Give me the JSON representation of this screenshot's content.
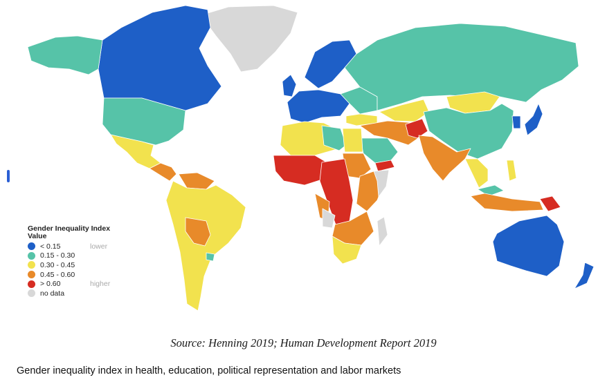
{
  "palette": {
    "lt015": "#1e5fc7",
    "r015_030": "#56c3a8",
    "r030_045": "#f2e24e",
    "r045_060": "#e88a2a",
    "gt060": "#d62c22",
    "nodata": "#d8d8d8"
  },
  "legend": {
    "title_line1": "Gender Inequality Index",
    "title_line2": "Value",
    "items": [
      {
        "label": "< 0.15",
        "note": "lower",
        "color_key": "lt015"
      },
      {
        "label": "0.15 - 0.30",
        "note": "",
        "color_key": "r015_030"
      },
      {
        "label": "0.30 - 0.45",
        "note": "",
        "color_key": "r030_045"
      },
      {
        "label": "0.45 - 0.60",
        "note": "",
        "color_key": "r045_060"
      },
      {
        "label": "> 0.60",
        "note": "higher",
        "color_key": "gt060"
      },
      {
        "label": "no data",
        "note": "",
        "color_key": "nodata"
      }
    ]
  },
  "regions": [
    {
      "name": "greenland",
      "class": "nodata"
    },
    {
      "name": "canada",
      "class": "lt015"
    },
    {
      "name": "alaska",
      "class": "r015_030"
    },
    {
      "name": "usa",
      "class": "r015_030"
    },
    {
      "name": "mexico",
      "class": "r030_045"
    },
    {
      "name": "central-america",
      "class": "r045_060"
    },
    {
      "name": "south-america",
      "class": "r030_045"
    },
    {
      "name": "bolivia-paraguay",
      "class": "r045_060"
    },
    {
      "name": "uruguay",
      "class": "r015_030"
    },
    {
      "name": "venezuela-guianas",
      "class": "r045_060"
    },
    {
      "name": "scandinavia",
      "class": "lt015"
    },
    {
      "name": "western-europe",
      "class": "lt015"
    },
    {
      "name": "uk-ireland",
      "class": "lt015"
    },
    {
      "name": "eastern-europe",
      "class": "r015_030"
    },
    {
      "name": "russia",
      "class": "r015_030"
    },
    {
      "name": "mongolia",
      "class": "r030_045"
    },
    {
      "name": "china",
      "class": "r015_030"
    },
    {
      "name": "japan",
      "class": "lt015"
    },
    {
      "name": "korea",
      "class": "lt015"
    },
    {
      "name": "kazakhstan",
      "class": "r030_045"
    },
    {
      "name": "turkey",
      "class": "r030_045"
    },
    {
      "name": "middle-east",
      "class": "r045_060"
    },
    {
      "name": "saudi-arabia",
      "class": "r015_030"
    },
    {
      "name": "yemen",
      "class": "gt060"
    },
    {
      "name": "afghanistan",
      "class": "gt060"
    },
    {
      "name": "india-pakistan",
      "class": "r045_060"
    },
    {
      "name": "southeast-asia",
      "class": "r030_045"
    },
    {
      "name": "malaysia",
      "class": "r015_030"
    },
    {
      "name": "indonesia",
      "class": "r045_060"
    },
    {
      "name": "papua-new-guinea",
      "class": "gt060"
    },
    {
      "name": "philippines",
      "class": "r030_045"
    },
    {
      "name": "australia",
      "class": "lt015"
    },
    {
      "name": "new-zealand",
      "class": "lt015"
    },
    {
      "name": "north-africa",
      "class": "r030_045"
    },
    {
      "name": "libya",
      "class": "r015_030"
    },
    {
      "name": "egypt",
      "class": "r030_045"
    },
    {
      "name": "west-africa",
      "class": "gt060"
    },
    {
      "name": "sudan",
      "class": "r045_060"
    },
    {
      "name": "central-africa",
      "class": "gt060"
    },
    {
      "name": "east-africa",
      "class": "r045_060"
    },
    {
      "name": "somalia",
      "class": "nodata"
    },
    {
      "name": "gabon-congo",
      "class": "r045_060"
    },
    {
      "name": "angola",
      "class": "nodata"
    },
    {
      "name": "zambia-mozambique",
      "class": "r045_060"
    },
    {
      "name": "southern-africa",
      "class": "r030_045"
    },
    {
      "name": "madagascar",
      "class": "nodata"
    }
  ],
  "source_text": "Source: Henning 2019; Human Development Report 2019",
  "caption_text": "Gender inequality index in health, education, political representation and labor markets"
}
